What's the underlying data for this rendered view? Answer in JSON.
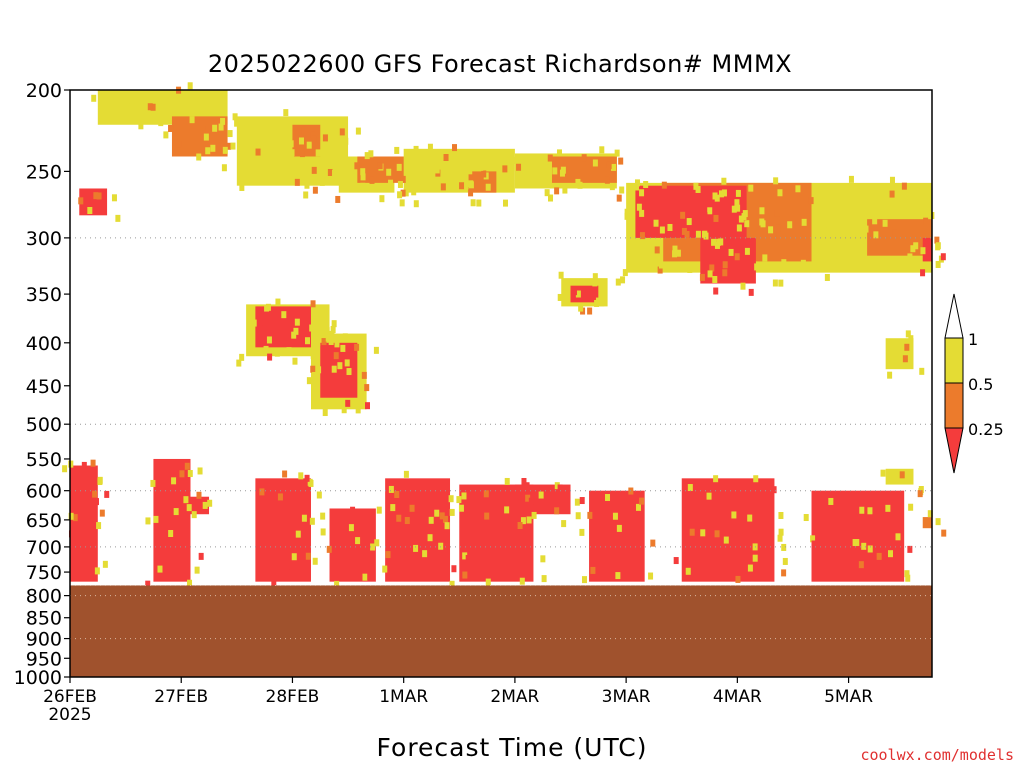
{
  "chart_data": {
    "type": "heatmap",
    "title": "2025022600 GFS Forecast Richardson# MMMX",
    "xlabel": "Forecast Time (UTC)",
    "ylabel": "",
    "x_ticks": [
      {
        "label": "26FEB",
        "sub": "2025",
        "hours": 0
      },
      {
        "label": "27FEB",
        "hours": 24
      },
      {
        "label": "28FEB",
        "hours": 48
      },
      {
        "label": "1MAR",
        "hours": 72
      },
      {
        "label": "2MAR",
        "hours": 96
      },
      {
        "label": "3MAR",
        "hours": 120
      },
      {
        "label": "4MAR",
        "hours": 144
      },
      {
        "label": "5MAR",
        "hours": 168
      }
    ],
    "xlim_hours": [
      0,
      186
    ],
    "y_ticks": [
      200,
      250,
      300,
      350,
      400,
      450,
      500,
      550,
      600,
      650,
      700,
      750,
      800,
      850,
      900,
      950,
      1000
    ],
    "ylim": [
      1000,
      200
    ],
    "y_gridlines": [
      300,
      500,
      600,
      700,
      800,
      900,
      1000
    ],
    "ground_level_hpa": 778,
    "colorbar": {
      "labels": [
        "1",
        "0.5",
        "0.25"
      ],
      "bins": [
        {
          "range": "< 0.25",
          "color": "#f43c3c"
        },
        {
          "range": "0.25 - 0.5",
          "color": "#ec7b2c"
        },
        {
          "range": "0.5 - 1",
          "color": "#e4dc34"
        },
        {
          "range": "> 1",
          "color": "#ffffff"
        }
      ]
    },
    "colors": {
      "low": "#f43c3c",
      "mid": "#ec7b2c",
      "high": "#e4dc34",
      "ground": "#a0522d"
    },
    "regions": [
      {
        "level": "high",
        "t0": 6,
        "t1": 34,
        "p0": 200,
        "p1": 220
      },
      {
        "level": "mid",
        "t0": 22,
        "t1": 34,
        "p0": 215,
        "p1": 240
      },
      {
        "level": "high",
        "t0": 36,
        "t1": 60,
        "p0": 215,
        "p1": 260
      },
      {
        "level": "mid",
        "t0": 48,
        "t1": 54,
        "p0": 220,
        "p1": 240
      },
      {
        "level": "high",
        "t0": 58,
        "t1": 70,
        "p0": 240,
        "p1": 265
      },
      {
        "level": "mid",
        "t0": 62,
        "t1": 82,
        "p0": 240,
        "p1": 258
      },
      {
        "level": "high",
        "t0": 72,
        "t1": 96,
        "p0": 235,
        "p1": 265
      },
      {
        "level": "mid",
        "t0": 86,
        "t1": 92,
        "p0": 250,
        "p1": 265
      },
      {
        "level": "high",
        "t0": 96,
        "t1": 118,
        "p0": 238,
        "p1": 262
      },
      {
        "level": "mid",
        "t0": 104,
        "t1": 118,
        "p0": 240,
        "p1": 258
      },
      {
        "level": "high",
        "t0": 120,
        "t1": 186,
        "p0": 258,
        "p1": 330
      },
      {
        "level": "mid",
        "t0": 128,
        "t1": 160,
        "p0": 258,
        "p1": 320
      },
      {
        "level": "low",
        "t0": 122,
        "t1": 146,
        "p0": 260,
        "p1": 300
      },
      {
        "level": "low",
        "t0": 136,
        "t1": 148,
        "p0": 300,
        "p1": 340
      },
      {
        "level": "mid",
        "t0": 172,
        "t1": 186,
        "p0": 285,
        "p1": 315
      },
      {
        "level": "low",
        "t0": 184,
        "t1": 186,
        "p0": 300,
        "p1": 320
      },
      {
        "level": "low",
        "t0": 2,
        "t1": 8,
        "p0": 262,
        "p1": 282
      },
      {
        "level": "high",
        "t0": 106,
        "t1": 116,
        "p0": 335,
        "p1": 362
      },
      {
        "level": "low",
        "t0": 108,
        "t1": 114,
        "p0": 342,
        "p1": 358
      },
      {
        "level": "high",
        "t0": 38,
        "t1": 56,
        "p0": 360,
        "p1": 415
      },
      {
        "level": "low",
        "t0": 40,
        "t1": 52,
        "p0": 362,
        "p1": 405
      },
      {
        "level": "high",
        "t0": 52,
        "t1": 64,
        "p0": 390,
        "p1": 480
      },
      {
        "level": "low",
        "t0": 54,
        "t1": 62,
        "p0": 400,
        "p1": 465
      },
      {
        "level": "high",
        "t0": 176,
        "t1": 182,
        "p0": 395,
        "p1": 430
      },
      {
        "level": "low",
        "t0": 0,
        "t1": 6,
        "p0": 560,
        "p1": 770
      },
      {
        "level": "low",
        "t0": 18,
        "t1": 26,
        "p0": 550,
        "p1": 770
      },
      {
        "level": "low",
        "t0": 26,
        "t1": 30,
        "p0": 610,
        "p1": 640
      },
      {
        "level": "low",
        "t0": 40,
        "t1": 52,
        "p0": 580,
        "p1": 770
      },
      {
        "level": "low",
        "t0": 56,
        "t1": 66,
        "p0": 630,
        "p1": 770
      },
      {
        "level": "low",
        "t0": 68,
        "t1": 82,
        "p0": 580,
        "p1": 770
      },
      {
        "level": "low",
        "t0": 84,
        "t1": 100,
        "p0": 590,
        "p1": 770
      },
      {
        "level": "low",
        "t0": 96,
        "t1": 108,
        "p0": 590,
        "p1": 640
      },
      {
        "level": "low",
        "t0": 112,
        "t1": 124,
        "p0": 600,
        "p1": 770
      },
      {
        "level": "low",
        "t0": 132,
        "t1": 152,
        "p0": 580,
        "p1": 770
      },
      {
        "level": "low",
        "t0": 160,
        "t1": 180,
        "p0": 600,
        "p1": 770
      },
      {
        "level": "high",
        "t0": 176,
        "t1": 182,
        "p0": 565,
        "p1": 590
      },
      {
        "level": "mid",
        "t0": 184,
        "t1": 186,
        "p0": 645,
        "p1": 665
      }
    ]
  }
}
